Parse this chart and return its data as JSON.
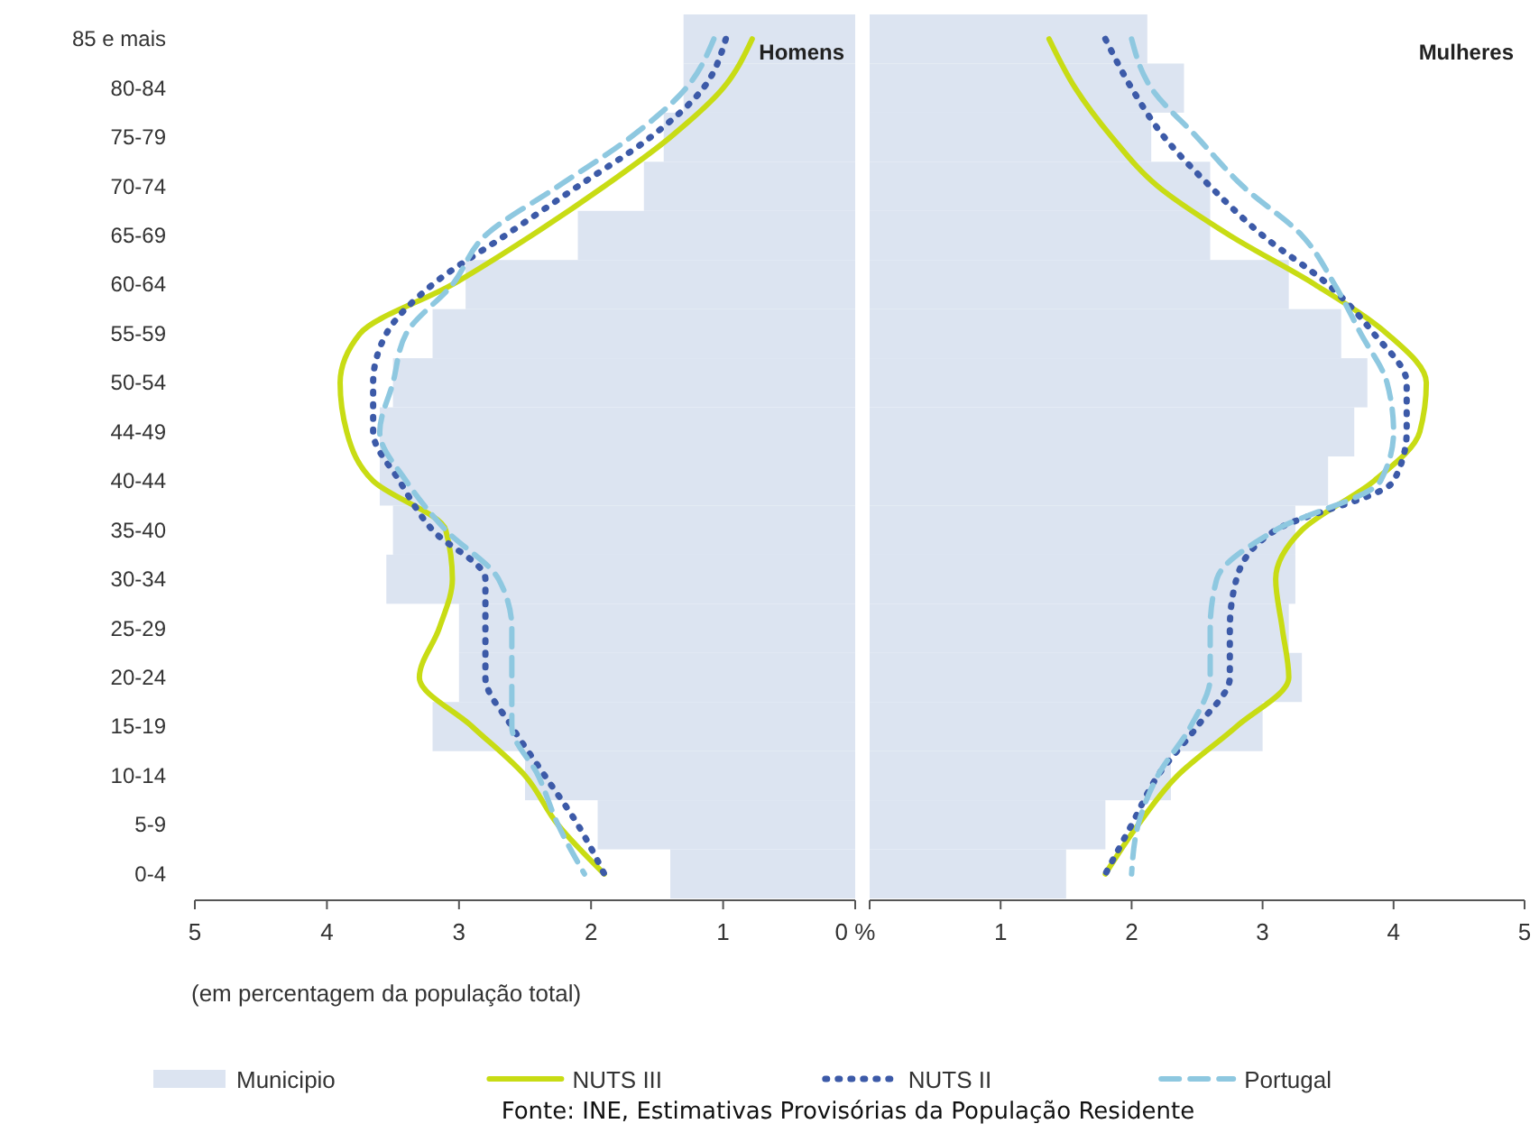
{
  "chart_data": [
    {
      "type": "bar",
      "orientation": "horizontal",
      "title": "Homens",
      "xlabel": "(em percentagem da população total)",
      "categories": [
        "85 e mais",
        "80-84",
        "75-79",
        "70-74",
        "65-69",
        "60-64",
        "55-59",
        "50-54",
        "44-49",
        "40-44",
        "35-40",
        "30-34",
        "25-29",
        "20-24",
        "15-19",
        "10-14",
        "5-9",
        "0-4"
      ],
      "xlim": [
        5,
        0
      ],
      "xticks": [
        5,
        4,
        3,
        2,
        1,
        {
          "value": 0,
          "label": "0 %"
        }
      ],
      "legend": "bottom",
      "series": [
        {
          "name": "Municipio",
          "color": "#dce4f1",
          "values": [
            1.3,
            1.3,
            1.45,
            1.6,
            2.1,
            2.95,
            3.2,
            3.5,
            3.6,
            3.6,
            3.5,
            3.55,
            3.0,
            3.0,
            3.2,
            2.5,
            1.95,
            1.4
          ]
        },
        {
          "name": "NUTS III",
          "type": "line",
          "line_style": "solid",
          "color": "#c8dc14",
          "values": [
            0.78,
            1.0,
            1.4,
            1.9,
            2.45,
            3.05,
            3.75,
            3.9,
            3.85,
            3.65,
            3.1,
            3.05,
            3.15,
            3.3,
            2.9,
            2.5,
            2.25,
            1.9
          ]
        },
        {
          "name": "NUTS II",
          "type": "line",
          "line_style": "dotted",
          "color": "#3c5aa8",
          "values": [
            0.98,
            1.15,
            1.55,
            2.1,
            2.65,
            3.2,
            3.55,
            3.65,
            3.65,
            3.45,
            3.2,
            2.8,
            2.8,
            2.8,
            2.6,
            2.35,
            2.1,
            1.9
          ]
        },
        {
          "name": "Portugal",
          "type": "line",
          "line_style": "dashed",
          "color": "#8ec8e0",
          "values": [
            1.07,
            1.28,
            1.7,
            2.25,
            2.8,
            3.05,
            3.4,
            3.5,
            3.6,
            3.4,
            3.1,
            2.7,
            2.6,
            2.6,
            2.6,
            2.4,
            2.25,
            2.05
          ]
        }
      ]
    },
    {
      "type": "bar",
      "orientation": "horizontal",
      "title": "Mulheres",
      "categories": [
        null,
        null,
        null,
        null,
        null,
        null,
        null,
        null,
        null,
        null,
        null,
        null,
        null,
        null,
        null,
        null,
        null,
        null
      ],
      "xlim": [
        0,
        5
      ],
      "xticks": [
        {
          "value": 0,
          "label": null
        },
        1,
        2,
        3,
        4,
        5
      ],
      "tick_labels": "x",
      "annotations": [
        "Fonte: INE, Estimativas Provisórias da População Residente"
      ],
      "series": [
        {
          "color": "#dce4f1",
          "values": [
            2.12,
            2.4,
            2.15,
            2.6,
            2.6,
            3.2,
            3.6,
            3.8,
            3.7,
            3.5,
            3.25,
            3.25,
            3.2,
            3.3,
            3.0,
            2.3,
            1.8,
            1.5
          ]
        },
        {
          "type": "line",
          "line_style": "solid",
          "color": "#c8dc14",
          "values": [
            1.37,
            1.57,
            1.85,
            2.2,
            2.75,
            3.4,
            3.95,
            4.25,
            4.2,
            3.85,
            3.3,
            3.1,
            3.15,
            3.2,
            2.8,
            2.35,
            2.05,
            1.8
          ]
        },
        {
          "type": "line",
          "line_style": "dotted",
          "color": "#3c5aa8",
          "values": [
            1.8,
            2.0,
            2.25,
            2.6,
            3.0,
            3.5,
            3.85,
            4.1,
            4.1,
            4.0,
            3.1,
            2.8,
            2.75,
            2.75,
            2.5,
            2.2,
            2.0,
            1.8
          ]
        },
        {
          "type": "line",
          "line_style": "dashed",
          "color": "#8ec8e0",
          "values": [
            2.0,
            2.15,
            2.5,
            2.85,
            3.3,
            3.55,
            3.75,
            3.95,
            4.0,
            3.9,
            3.1,
            2.65,
            2.6,
            2.6,
            2.45,
            2.2,
            2.05,
            2.0
          ]
        }
      ]
    }
  ]
}
